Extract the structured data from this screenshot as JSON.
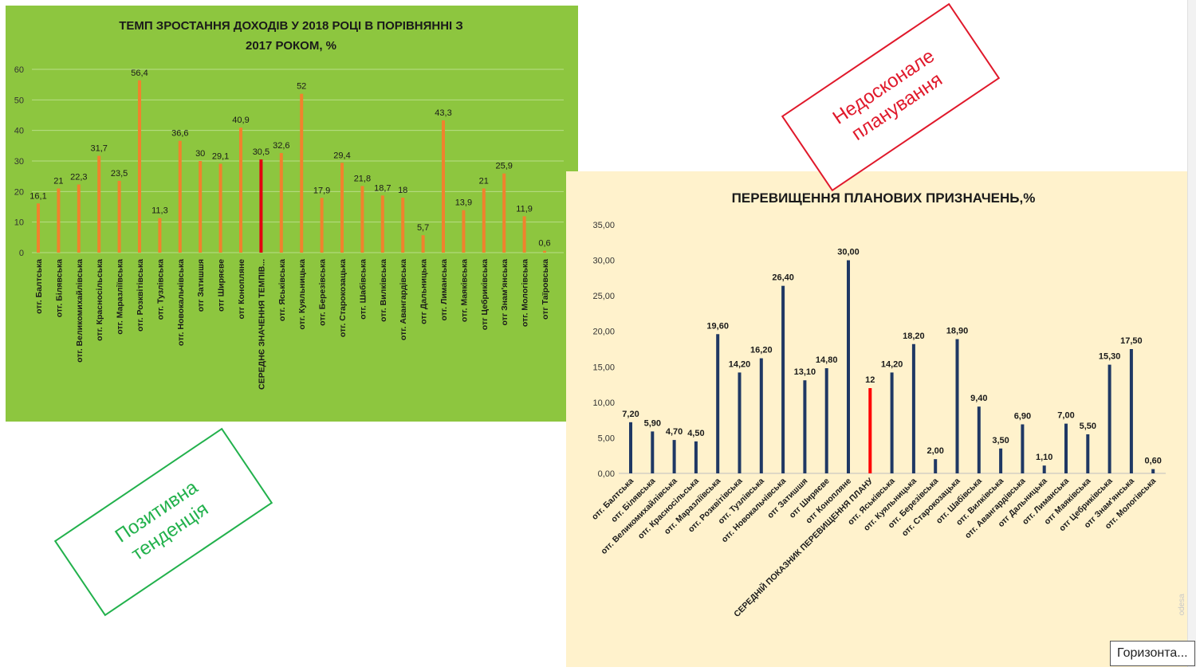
{
  "chart_data": [
    {
      "type": "bar",
      "title_lines": [
        "ТЕМП ЗРОСТАННЯ ДОХОДІВ У 2018  РОЦІ В ПОРІВНЯННІ З",
        "2017 РОКОМ, %"
      ],
      "categories": [
        "отг. Балтська",
        "отг. Білявська",
        "отг. Великомихайлівська",
        "отг. Красносільська",
        "отг. Маразліївська",
        "отг. Розквітівська",
        "отг. Тузлівська",
        "отг. Новокальчівська",
        "отг Затишшя",
        "отг Ширяєве",
        "отг Конопляне",
        "СЕРЕДНЄ ЗНАЧЕННЯ ТЕМПІВ...",
        "отг. Яськівська",
        "отг. Куяльницька",
        "отг. Березівська",
        "отг. Старокозацька",
        "отг. Шабівська",
        "отг. Вилківська",
        "отг. Авангардівська",
        "отг Дальницька",
        "отг. Лиманська",
        "отг. Маяківська",
        "отг Цебриківська",
        "отг Знам'янська",
        "отг. Мологівська",
        "отг Таїровська"
      ],
      "values": [
        16.1,
        21,
        22.3,
        31.7,
        23.5,
        56.4,
        11.3,
        36.6,
        30,
        29.1,
        40.9,
        30.5,
        32.6,
        52,
        17.9,
        29.4,
        21.8,
        18.7,
        18,
        5.7,
        43.3,
        13.9,
        21,
        25.9,
        11.9,
        0.6
      ],
      "value_labels": [
        "16,1",
        "21",
        "22,3",
        "31,7",
        "23,5",
        "56,4",
        "11,3",
        "36,6",
        "30",
        "29,1",
        "40,9",
        "30,5",
        "32,6",
        "52",
        "17,9",
        "29,4",
        "21,8",
        "18,7",
        "18",
        "5,7",
        "43,3",
        "13,9",
        "21",
        "25,9",
        "11,9",
        "0,6"
      ],
      "highlight_index": 11,
      "ylim": [
        0,
        60
      ],
      "yticks": [
        "0",
        "10",
        "20",
        "30",
        "40",
        "50",
        "60"
      ],
      "grid": true,
      "colors": {
        "background": "#8dc63f",
        "bar": "#f0822d",
        "highlight": "#e3000f",
        "grid": "#b9dd88",
        "text": "#1a1a1a"
      }
    },
    {
      "type": "bar",
      "title": "ПЕРЕВИЩЕННЯ ПЛАНОВИХ ПРИЗНАЧЕНЬ,%",
      "categories": [
        "отг. Балтська",
        "отг. Білявська",
        "отг. Великомихайлівська",
        "отг. Красносільська",
        "отг. Маразліївська",
        "отг. Розквітівська",
        "отг. Тузлівська",
        "отг. Новокальчівська",
        "отг Затишшя",
        "отг Ширяєве",
        "отг Конопляне",
        "СЕРЕДНІЙ ПОКАЗНИК ПЕРЕВИЩЕННЯ ПЛАНУ",
        "отг. Яськівська",
        "отг. Куяльницька",
        "отг. Березівська",
        "отг. Старокозацька",
        "отг. Шабівська",
        "отг. Вилківська",
        "отг. Авангардівська",
        "отг Дальницька",
        "отг. Лиманська",
        "отг Маяківська",
        "отг Цебриківська",
        "отг Знам'янська",
        "отг. Мологівська"
      ],
      "values": [
        7.2,
        5.9,
        4.7,
        4.5,
        19.6,
        14.2,
        16.2,
        26.4,
        13.1,
        14.8,
        30,
        12,
        14.2,
        18.2,
        2,
        18.9,
        9.4,
        3.5,
        6.9,
        1.1,
        7,
        5.5,
        15.3,
        17.5,
        0.6
      ],
      "value_labels": [
        "7,20",
        "5,90",
        "4,70",
        "4,50",
        "19,60",
        "14,20",
        "16,20",
        "26,40",
        "13,10",
        "14,80",
        "30,00",
        "12",
        "14,20",
        "18,20",
        "2,00",
        "18,90",
        "9,40",
        "3,50",
        "6,90",
        "1,10",
        "7,00",
        "5,50",
        "15,30",
        "17,50",
        "0,60"
      ],
      "highlight_index": 11,
      "ylim": [
        0,
        35
      ],
      "yticks": [
        "0,00",
        "5,00",
        "10,00",
        "15,00",
        "20,00",
        "25,00",
        "30,00",
        "35,00"
      ],
      "grid": false,
      "colors": {
        "background": "#fff2cc",
        "bar": "#1f3864",
        "highlight": "#ff0000",
        "axis": "#bfbfbf",
        "text": "#1a1a1a"
      }
    }
  ],
  "annotations": {
    "stamp_red": {
      "lines": [
        "Недосконале",
        "планування"
      ],
      "color": "#e0192b"
    },
    "stamp_green": {
      "lines": [
        "Позитивна",
        "тенденція"
      ],
      "color": "#22b14c"
    }
  },
  "tooltip": {
    "text": "Горизонта..."
  },
  "watermark": {
    "text": "odesa"
  }
}
